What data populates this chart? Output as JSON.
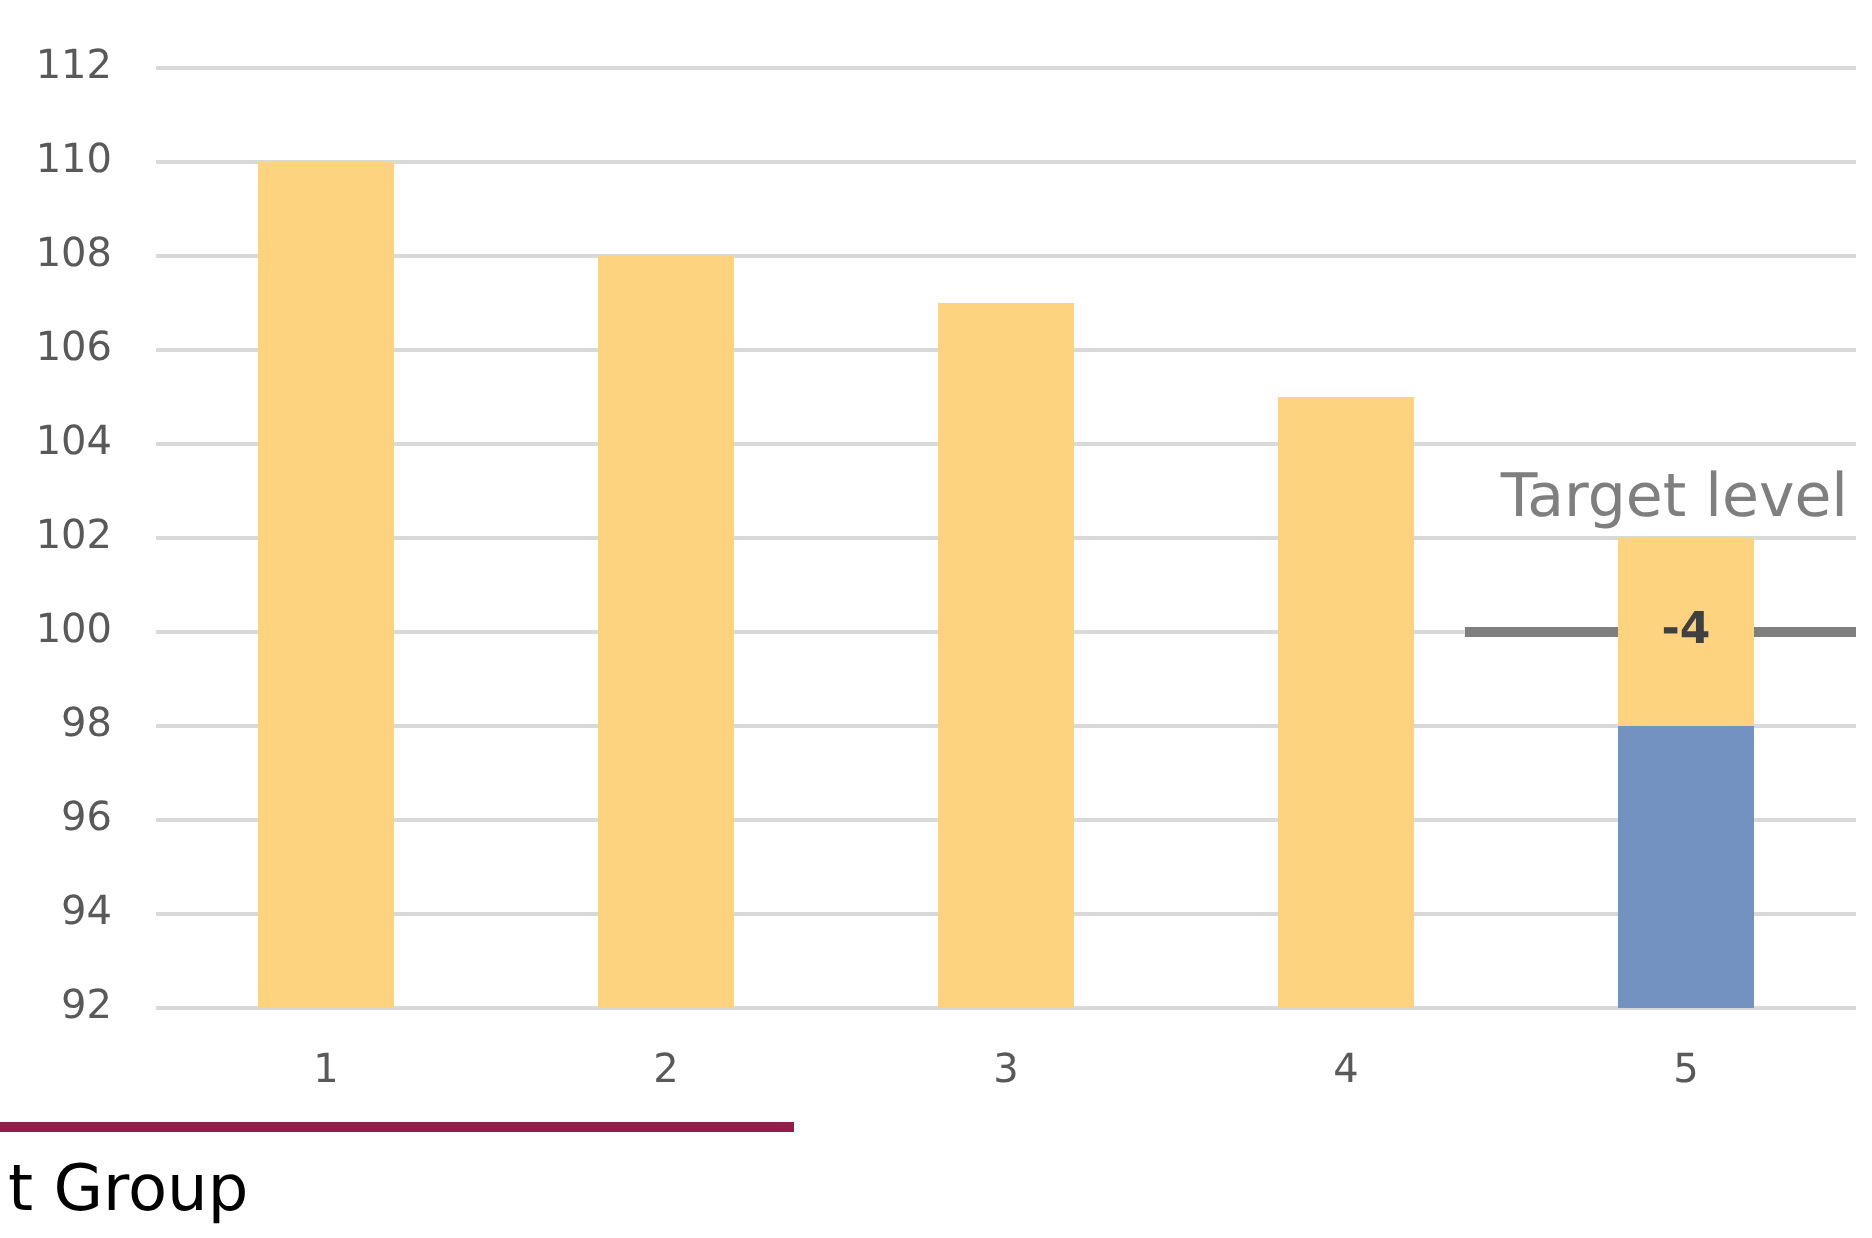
{
  "chart_data": {
    "type": "bar",
    "categories": [
      "1",
      "2",
      "3",
      "4",
      "5"
    ],
    "series": [
      {
        "color": "#fed37f",
        "values": [
          110,
          108,
          107,
          105,
          -4
        ],
        "base": [
          null,
          null,
          null,
          null,
          102
        ],
        "value_labels": [
          null,
          null,
          null,
          null,
          "-4"
        ]
      },
      {
        "color": "#7391c1",
        "values": [
          null,
          null,
          null,
          null,
          98
        ]
      }
    ],
    "ylim": [
      92,
      112
    ],
    "yticks": [
      92,
      94,
      96,
      98,
      100,
      102,
      104,
      106,
      108,
      110,
      112
    ],
    "grid": "y",
    "ref_lines": [
      {
        "axis": "y",
        "value": 100,
        "label": "Target level",
        "color": "#7f7f7f"
      }
    ],
    "annotations": [
      "t Group"
    ]
  }
}
